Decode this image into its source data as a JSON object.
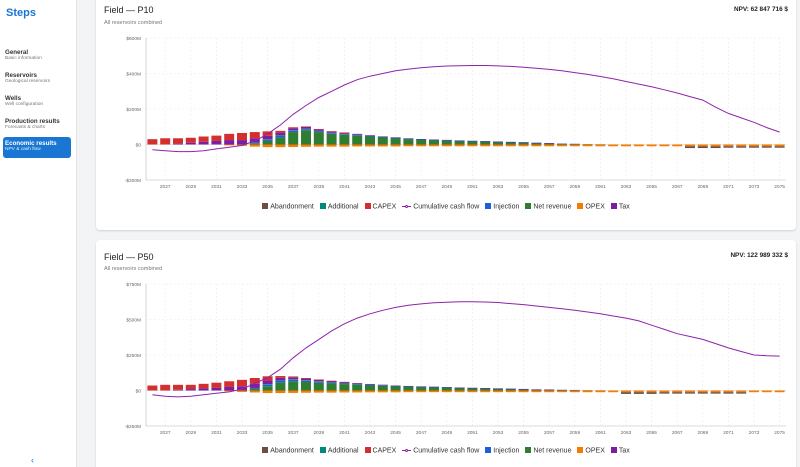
{
  "sidebar": {
    "title": "Steps",
    "items": [
      {
        "label": "General",
        "sub": "Basic information",
        "active": false
      },
      {
        "label": "Reservoirs",
        "sub": "Geological reservoirs",
        "active": false
      },
      {
        "label": "Wells",
        "sub": "Well configuration",
        "active": false
      },
      {
        "label": "Production results",
        "sub": "Forecasts & charts",
        "active": false
      },
      {
        "label": "Economic results",
        "sub": "NPV & cash flow",
        "active": true
      }
    ],
    "collapse_label": "‹"
  },
  "colors": {
    "Abandonment": "#6d4c41",
    "Additional": "#00897b",
    "CAPEX": "#d32f2f",
    "Cumulative cash flow": "#8e24aa",
    "Injection": "#1e5fd8",
    "Net revenue": "#2e7d32",
    "OPEX": "#f57c00",
    "Tax": "#7b1fa2"
  },
  "legend": [
    "Abandonment",
    "Additional",
    "CAPEX",
    "Cumulative cash flow",
    "Injection",
    "Net revenue",
    "OPEX",
    "Tax"
  ],
  "cards": [
    {
      "title": "Field — P10",
      "subtitle": "All reservoirs combined",
      "npv": "NPV: 62 847 716 $"
    },
    {
      "title": "Field — P50",
      "subtitle": "All reservoirs combined",
      "npv": "NPV: 122 989 332 $"
    }
  ],
  "chart_data": [
    {
      "type": "bar",
      "title": "Field — P10",
      "xlabel": "",
      "ylabel": "",
      "x_start": 2026,
      "x_end": 2075,
      "xticks": [
        2027,
        2029,
        2031,
        2033,
        2035,
        2037,
        2039,
        2041,
        2043,
        2045,
        2047,
        2049,
        2051,
        2053,
        2055,
        2057,
        2059,
        2061,
        2063,
        2065,
        2067,
        2069,
        2071,
        2073,
        2075
      ],
      "ylim": [
        -200,
        600
      ],
      "yticks": [
        -200,
        0,
        200,
        400,
        600
      ],
      "ytick_labels": [
        "-$200M",
        "$0",
        "$200M",
        "$400M",
        "$600M"
      ],
      "grid": true,
      "legend_position": "bottom",
      "series": [
        {
          "name": "Net revenue",
          "values": [
            0,
            0,
            0,
            0,
            0,
            0,
            0,
            0,
            5,
            20,
            40,
            70,
            80,
            70,
            60,
            55,
            50,
            45,
            40,
            35,
            30,
            27,
            24,
            22,
            20,
            18,
            16,
            14,
            12,
            10,
            8,
            6,
            4,
            3,
            2,
            1,
            0,
            0,
            0,
            0,
            0,
            0,
            0,
            0,
            0,
            0,
            0,
            0,
            0,
            0
          ]
        },
        {
          "name": "Injection",
          "values": [
            0,
            0,
            0,
            0,
            0,
            0,
            0,
            0,
            3,
            6,
            8,
            7,
            6,
            5,
            4,
            3,
            3,
            2,
            2,
            2,
            2,
            1,
            1,
            1,
            1,
            1,
            1,
            1,
            1,
            1,
            1,
            1,
            1,
            1,
            0,
            0,
            0,
            0,
            0,
            0,
            0,
            0,
            0,
            0,
            0,
            0,
            0,
            0,
            0,
            0
          ]
        },
        {
          "name": "Additional",
          "values": [
            0,
            0,
            0,
            0,
            0,
            0,
            0,
            0,
            2,
            3,
            4,
            3,
            3,
            2,
            2,
            2,
            2,
            1,
            1,
            1,
            1,
            1,
            1,
            1,
            1,
            1,
            1,
            1,
            1,
            1,
            0,
            0,
            0,
            0,
            0,
            0,
            0,
            0,
            0,
            0,
            0,
            0,
            0,
            0,
            0,
            0,
            0,
            0,
            0,
            0
          ]
        },
        {
          "name": "Tax",
          "values": [
            0,
            0,
            5,
            10,
            15,
            20,
            25,
            25,
            25,
            20,
            15,
            12,
            10,
            8,
            7,
            6,
            5,
            4,
            3,
            3,
            2,
            2,
            2,
            2,
            1,
            1,
            1,
            1,
            1,
            1,
            1,
            1,
            0,
            0,
            0,
            0,
            0,
            0,
            0,
            0,
            0,
            0,
            0,
            0,
            0,
            0,
            0,
            0,
            0,
            0
          ]
        },
        {
          "name": "CAPEX",
          "values": [
            30,
            35,
            30,
            28,
            30,
            30,
            35,
            40,
            35,
            25,
            10,
            5,
            3,
            2,
            2,
            2,
            0,
            0,
            0,
            0,
            0,
            0,
            0,
            0,
            0,
            0,
            0,
            0,
            0,
            0,
            0,
            0,
            0,
            0,
            0,
            0,
            0,
            0,
            0,
            0,
            0,
            0,
            0,
            0,
            0,
            0,
            0,
            0,
            0,
            0
          ]
        },
        {
          "name": "OPEX",
          "values": [
            0,
            0,
            0,
            0,
            0,
            0,
            5,
            8,
            12,
            15,
            15,
            14,
            13,
            12,
            12,
            12,
            11,
            11,
            11,
            11,
            10,
            10,
            10,
            10,
            10,
            10,
            10,
            10,
            10,
            10,
            10,
            10,
            10,
            10,
            10,
            10,
            10,
            10,
            10,
            10,
            10,
            10,
            10,
            10,
            10,
            10,
            10,
            10,
            10,
            10
          ]
        },
        {
          "name": "Abandonment",
          "values": [
            0,
            0,
            0,
            0,
            0,
            0,
            0,
            0,
            0,
            0,
            0,
            0,
            0,
            0,
            0,
            0,
            0,
            0,
            0,
            0,
            0,
            0,
            0,
            0,
            0,
            0,
            0,
            0,
            0,
            0,
            0,
            0,
            0,
            0,
            0,
            0,
            0,
            0,
            0,
            0,
            0,
            0,
            10,
            10,
            10,
            8,
            8,
            8,
            8,
            8
          ]
        },
        {
          "name": "Cumulative cash flow",
          "values": [
            -30,
            -35,
            -40,
            -40,
            -35,
            -25,
            -15,
            -5,
            20,
            60,
            110,
            170,
            220,
            265,
            300,
            335,
            365,
            385,
            400,
            415,
            425,
            432,
            438,
            442,
            444,
            445,
            445,
            443,
            440,
            435,
            430,
            423,
            415,
            405,
            395,
            383,
            370,
            355,
            340,
            325,
            308,
            290,
            270,
            250,
            210,
            175,
            150,
            125,
            95,
            70
          ]
        }
      ]
    },
    {
      "type": "bar",
      "title": "Field — P50",
      "xlabel": "",
      "ylabel": "",
      "x_start": 2026,
      "x_end": 2075,
      "xticks": [
        2027,
        2029,
        2031,
        2033,
        2035,
        2037,
        2039,
        2041,
        2043,
        2045,
        2047,
        2049,
        2051,
        2053,
        2055,
        2057,
        2059,
        2061,
        2063,
        2065,
        2067,
        2069,
        2071,
        2073,
        2075
      ],
      "ylim": [
        -250,
        750
      ],
      "yticks": [
        -250,
        0,
        250,
        500,
        750
      ],
      "ytick_labels": [
        "-$250M",
        "$0",
        "$250M",
        "$500M",
        "$750M"
      ],
      "grid": true,
      "legend_position": "bottom",
      "series": [
        {
          "name": "Net revenue",
          "values": [
            0,
            0,
            0,
            0,
            0,
            0,
            0,
            0,
            10,
            30,
            55,
            65,
            60,
            55,
            50,
            45,
            40,
            36,
            32,
            29,
            26,
            24,
            22,
            20,
            18,
            16,
            14,
            12,
            10,
            8,
            6,
            5,
            4,
            3,
            2,
            1,
            0,
            0,
            0,
            0,
            0,
            0,
            0,
            0,
            0,
            0,
            0,
            0,
            0,
            0
          ]
        },
        {
          "name": "Injection",
          "values": [
            0,
            0,
            0,
            0,
            0,
            0,
            0,
            0,
            5,
            10,
            12,
            10,
            8,
            7,
            6,
            5,
            4,
            3,
            3,
            2,
            2,
            2,
            2,
            1,
            1,
            1,
            1,
            1,
            1,
            1,
            1,
            1,
            1,
            1,
            0,
            0,
            0,
            0,
            0,
            0,
            0,
            0,
            0,
            0,
            0,
            0,
            0,
            0,
            0,
            0
          ]
        },
        {
          "name": "Additional",
          "values": [
            0,
            0,
            0,
            0,
            0,
            0,
            0,
            0,
            3,
            5,
            5,
            4,
            4,
            3,
            3,
            2,
            2,
            2,
            2,
            1,
            1,
            1,
            1,
            1,
            1,
            1,
            1,
            1,
            1,
            1,
            0,
            0,
            0,
            0,
            0,
            0,
            0,
            0,
            0,
            0,
            0,
            0,
            0,
            0,
            0,
            0,
            0,
            0,
            0,
            0
          ]
        },
        {
          "name": "Tax",
          "values": [
            0,
            0,
            5,
            10,
            15,
            20,
            25,
            30,
            30,
            25,
            18,
            14,
            12,
            10,
            8,
            7,
            6,
            5,
            4,
            3,
            3,
            2,
            2,
            2,
            1,
            1,
            1,
            1,
            1,
            1,
            1,
            1,
            0,
            0,
            0,
            0,
            0,
            0,
            0,
            0,
            0,
            0,
            0,
            0,
            0,
            0,
            0,
            0,
            0,
            0
          ]
        },
        {
          "name": "CAPEX",
          "values": [
            35,
            40,
            35,
            30,
            32,
            35,
            40,
            45,
            40,
            30,
            12,
            6,
            4,
            3,
            2,
            2,
            0,
            0,
            0,
            0,
            0,
            0,
            0,
            0,
            0,
            0,
            0,
            0,
            0,
            0,
            0,
            0,
            0,
            0,
            0,
            0,
            0,
            0,
            0,
            0,
            0,
            0,
            0,
            0,
            0,
            0,
            0,
            0,
            0,
            0
          ]
        },
        {
          "name": "OPEX",
          "values": [
            0,
            0,
            0,
            0,
            0,
            0,
            6,
            10,
            14,
            18,
            18,
            17,
            16,
            15,
            15,
            14,
            14,
            13,
            13,
            13,
            12,
            12,
            12,
            12,
            12,
            12,
            12,
            12,
            12,
            12,
            12,
            12,
            12,
            12,
            12,
            12,
            12,
            12,
            12,
            12,
            12,
            12,
            12,
            12,
            12,
            12,
            12,
            12,
            12,
            12
          ]
        },
        {
          "name": "Abandonment",
          "values": [
            0,
            0,
            0,
            0,
            0,
            0,
            0,
            0,
            0,
            0,
            0,
            0,
            0,
            0,
            0,
            0,
            0,
            0,
            0,
            0,
            0,
            0,
            0,
            0,
            0,
            0,
            0,
            0,
            0,
            0,
            0,
            0,
            0,
            0,
            0,
            0,
            0,
            12,
            12,
            12,
            10,
            10,
            10,
            10,
            10,
            10,
            10,
            0,
            0,
            0
          ]
        },
        {
          "name": "Cumulative cash flow",
          "values": [
            -30,
            -40,
            -45,
            -40,
            -30,
            -20,
            -10,
            10,
            50,
            90,
            150,
            230,
            300,
            360,
            420,
            470,
            510,
            540,
            565,
            585,
            600,
            610,
            618,
            622,
            625,
            625,
            623,
            620,
            612,
            605,
            595,
            585,
            575,
            565,
            553,
            540,
            525,
            510,
            490,
            460,
            430,
            400,
            380,
            360,
            330,
            300,
            275,
            250,
            245,
            242
          ]
        }
      ]
    }
  ]
}
